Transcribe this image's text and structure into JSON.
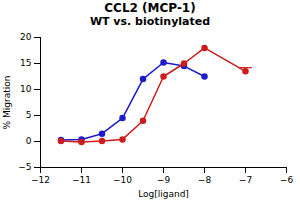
{
  "chart_data": {
    "type": "line",
    "title": "CCL2 (MCP-1)",
    "subtitle": "WT vs. biotinylated",
    "xlabel": "Log[ligand]",
    "ylabel": "% Migration",
    "x": [
      -11.5,
      -11,
      -10.5,
      -10,
      -9.5,
      -9,
      -8.5,
      -8,
      -7
    ],
    "series": [
      {
        "color": "#1c1ccc",
        "marker": "circle",
        "line_style": "solid",
        "values": [
          0.3,
          0.4,
          1.5,
          4.5,
          12.0,
          15.2,
          14.5,
          12.5,
          null
        ]
      },
      {
        "color": "#cc1c1c",
        "marker": "circle",
        "line_style": "solid",
        "values": [
          0.1,
          -0.1,
          0.1,
          0.4,
          4.0,
          12.5,
          15.0,
          18.0,
          13.5
        ],
        "error_upper": [
          null,
          null,
          null,
          null,
          null,
          null,
          null,
          null,
          0.7
        ]
      }
    ],
    "xlim": [
      -12,
      -6
    ],
    "ylim": [
      -5,
      20
    ],
    "xticks": [
      -12,
      -11,
      -10,
      -9,
      -8,
      -7,
      -6
    ],
    "yticks": [
      -5,
      0,
      5,
      10,
      15,
      20
    ],
    "grid": false
  }
}
